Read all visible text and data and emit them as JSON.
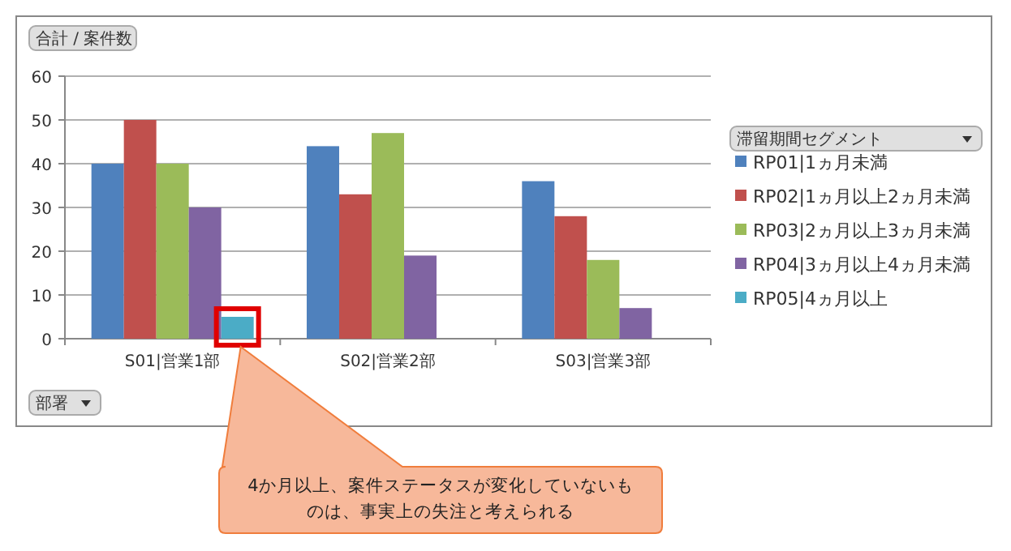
{
  "chart_data": {
    "type": "bar",
    "ylabel": "合計 / 案件数",
    "xlabel": "部署",
    "legend_title": "滞留期間セグメント",
    "categories": [
      "S01|営業1部",
      "S02|営業2部",
      "S03|営業3部"
    ],
    "series": [
      {
        "name": "RP01|1ヵ月未満",
        "color": "#4f81bd",
        "values": [
          40,
          44,
          36
        ]
      },
      {
        "name": "RP02|1ヵ月以上2ヵ月未満",
        "color": "#c0504d",
        "values": [
          50,
          33,
          28
        ]
      },
      {
        "name": "RP03|2ヵ月以上3ヵ月未満",
        "color": "#9bbb59",
        "values": [
          40,
          47,
          18
        ]
      },
      {
        "name": "RP04|3ヵ月以上4ヵ月未満",
        "color": "#8064a2",
        "values": [
          30,
          19,
          7
        ]
      },
      {
        "name": "RP05|4ヵ月以上",
        "color": "#4bacc6",
        "values": [
          5,
          null,
          null
        ]
      }
    ],
    "ylim": [
      0,
      60
    ],
    "yticks": [
      0,
      10,
      20,
      30,
      40,
      50,
      60
    ],
    "grid": "y",
    "legend": "right",
    "annotations": [
      "4か月以上、案件ステータスが変化していないものは、事実上の失注と考えられる"
    ]
  }
}
